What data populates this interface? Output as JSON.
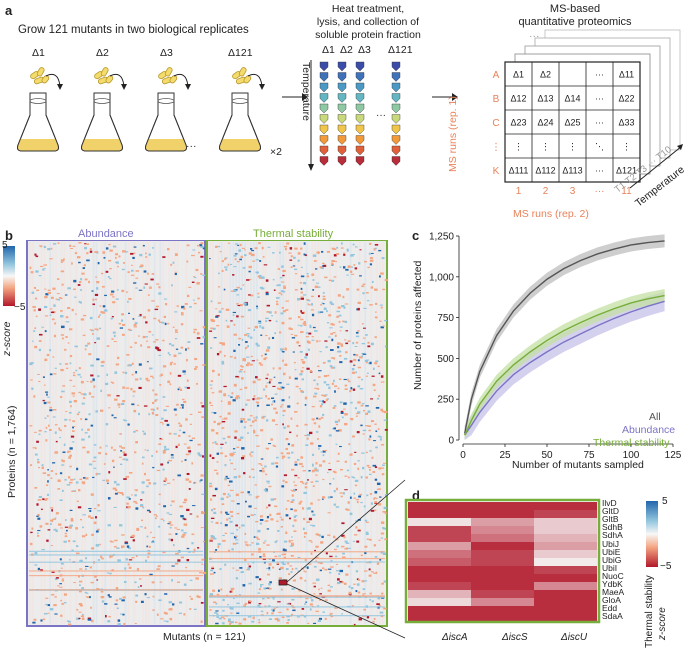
{
  "panel_a": {
    "label": "a",
    "grow_text": "Grow 121 mutants in two biological replicates",
    "flask_labels": [
      "Δ1",
      "Δ2",
      "Δ3",
      "Δ121"
    ],
    "ellipsis": "···",
    "times_two": "×2",
    "heat_text_1": "Heat treatment,",
    "heat_text_2": "lysis, and collection of",
    "heat_text_3": "soluble protein fraction",
    "tube_labels": [
      "Δ1",
      "Δ2",
      "Δ3",
      "Δ121"
    ],
    "temperature_label": "Temperature",
    "ms_title_1": "MS-based",
    "ms_title_2": "quantitative proteomics",
    "grid_rows": [
      "A",
      "B",
      "C",
      "⋮",
      "K"
    ],
    "grid_cells": [
      [
        "Δ1",
        "Δ2",
        "···",
        "Δ11"
      ],
      [
        "Δ12",
        "Δ13",
        "Δ14",
        "···",
        "Δ22"
      ],
      [
        "Δ23",
        "Δ24",
        "Δ25",
        "···",
        "Δ33"
      ],
      [
        "⋮",
        "⋮",
        "⋮",
        "⋱",
        "⋮"
      ],
      [
        "Δ111",
        "Δ112",
        "Δ113",
        "···",
        "Δ121"
      ]
    ],
    "grid_cols": [
      "1",
      "2",
      "3",
      "···",
      "11"
    ],
    "grid_top_dots": "···",
    "ms_runs_rep1": "MS runs (rep. 1)",
    "ms_runs_rep2": "MS runs (rep. 2)",
    "temp_series": "T1  T2  T3 ···  T10",
    "temperature_axis": "Temperature"
  },
  "panel_b": {
    "label": "b",
    "abundance_title": "Abundance",
    "thermal_title": "Thermal stability",
    "colorbar_max": "5",
    "colorbar_min": "−5",
    "colorbar_title": "z-score",
    "y_label": "Proteins (n = 1,764)",
    "x_label": "Mutants (n = 121)"
  },
  "panel_c": {
    "label": "c",
    "legend": [
      "All",
      "Abundance",
      "Thermal stability"
    ]
  },
  "panel_d": {
    "label": "d",
    "genes": [
      "IlvD",
      "GltD",
      "GltB",
      "SdhB",
      "SdhA",
      "UbiJ",
      "UbiE",
      "UbiG",
      "UbiI",
      "NuoC",
      "YdbK",
      "MaeA",
      "GloA",
      "Edd",
      "SdaA"
    ],
    "mutants": [
      "ΔiscA",
      "ΔiscS",
      "ΔiscU"
    ],
    "colorbar_max": "5",
    "colorbar_min": "−5",
    "colorbar_title_1": "Thermal stability",
    "colorbar_title_2": "z-score"
  },
  "colors": {
    "abundance": "#7b74c4",
    "thermal": "#77ad3a",
    "all": "#555555",
    "orange": "#e8825a"
  },
  "chart_data": {
    "type": "line",
    "title": "",
    "xlabel": "Number of mutants sampled",
    "ylabel": "Number of proteins affected",
    "xlim": [
      0,
      125
    ],
    "ylim": [
      0,
      1250
    ],
    "xticks": [
      0,
      25,
      50,
      75,
      100,
      125
    ],
    "yticks": [
      0,
      250,
      500,
      750,
      1000,
      1250
    ],
    "ytick_labels": [
      "0",
      "250",
      "500",
      "750",
      "1,000",
      "1,250"
    ],
    "x": [
      1,
      5,
      10,
      20,
      30,
      40,
      50,
      60,
      70,
      80,
      90,
      100,
      110,
      120
    ],
    "series": [
      {
        "name": "All",
        "values": [
          40,
          250,
          420,
          640,
          790,
          900,
          985,
          1050,
          1100,
          1140,
          1170,
          1195,
          1210,
          1220
        ],
        "band": 40
      },
      {
        "name": "Abundance",
        "values": [
          30,
          90,
          170,
          300,
          400,
          475,
          540,
          600,
          650,
          700,
          745,
          785,
          820,
          850
        ],
        "band": 60
      },
      {
        "name": "Thermal stability",
        "values": [
          30,
          120,
          220,
          360,
          460,
          540,
          610,
          670,
          720,
          765,
          805,
          840,
          865,
          885
        ],
        "band": 40
      }
    ]
  },
  "heatmap_data": {
    "type": "heatmap",
    "rows": [
      "IlvD",
      "GltD",
      "GltB",
      "SdhB",
      "SdhA",
      "UbiJ",
      "UbiE",
      "UbiG",
      "UbiI",
      "NuoC",
      "YdbK",
      "MaeA",
      "GloA",
      "Edd",
      "SdaA"
    ],
    "cols": [
      "ΔiscA",
      "ΔiscS",
      "ΔiscU"
    ],
    "values": [
      [
        -4.5,
        -4.5,
        -4.5
      ],
      [
        -4.5,
        -4.5,
        -4.0
      ],
      [
        -0.5,
        -2.0,
        -1.0
      ],
      [
        -4.0,
        -2.5,
        -1.0
      ],
      [
        -4.0,
        -3.0,
        -1.5
      ],
      [
        -2.0,
        -4.5,
        -2.0
      ],
      [
        -3.0,
        -4.0,
        -1.0
      ],
      [
        -3.5,
        -4.0,
        -0.3
      ],
      [
        -4.5,
        -4.5,
        -4.0
      ],
      [
        -4.5,
        -4.5,
        -4.5
      ],
      [
        -4.0,
        -4.5,
        -2.5
      ],
      [
        -1.5,
        -4.0,
        -4.5
      ],
      [
        -0.7,
        -2.5,
        -4.5
      ],
      [
        -4.5,
        -4.5,
        -4.5
      ],
      [
        -4.5,
        -4.5,
        -4.5
      ]
    ]
  }
}
